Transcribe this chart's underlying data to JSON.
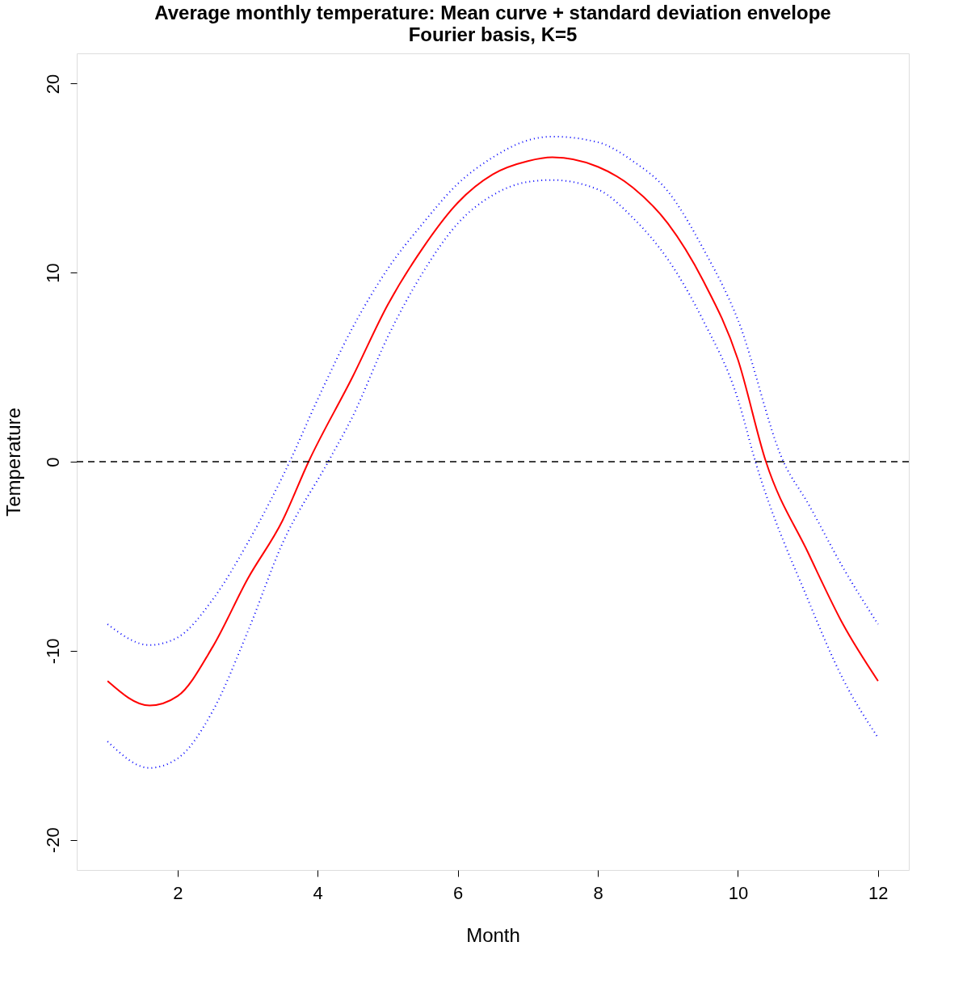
{
  "chart_data": {
    "type": "line",
    "title": "Average monthly temperature: Mean curve + standard deviation envelope",
    "subtitle": "Fourier basis,  K=5",
    "xlabel": "Month",
    "ylabel": "Temperature",
    "xlim": [
      0.56,
      12.44
    ],
    "ylim": [
      -21.6,
      21.6
    ],
    "xticks": [
      2,
      4,
      6,
      8,
      10,
      12
    ],
    "yticks": [
      -20,
      -10,
      0,
      10,
      20
    ],
    "grid": false,
    "series": [
      {
        "color": "#ff0000",
        "line_style": "solid",
        "x": [
          1,
          1.6,
          2,
          2.5,
          3,
          3.5,
          3.87,
          4.5,
          5,
          5.5,
          6,
          6.5,
          7,
          7.35,
          8,
          8.5,
          9,
          9.5,
          10,
          10.4,
          11,
          11.5,
          12
        ],
        "values": [
          -11.6,
          -12.9,
          -12.4,
          -9.8,
          -6.2,
          -3.1,
          0,
          4.5,
          8.3,
          11.3,
          13.7,
          15.2,
          15.9,
          16.1,
          15.6,
          14.5,
          12.6,
          9.6,
          5.4,
          0,
          -4.8,
          -8.6,
          -11.6
        ]
      },
      {
        "color": "#0000ff",
        "line_style": "dotted",
        "x": [
          1,
          1.6,
          2,
          2.5,
          3,
          3.6,
          4,
          4.5,
          5,
          5.5,
          6,
          6.5,
          7,
          7.35,
          8,
          8.5,
          9,
          9.5,
          10,
          10.65,
          11,
          11.5,
          12
        ],
        "values": [
          -8.6,
          -9.7,
          -9.3,
          -7.3,
          -4.3,
          0,
          3.3,
          7.1,
          10.2,
          12.6,
          14.7,
          16.1,
          17.0,
          17.2,
          16.9,
          15.9,
          14.3,
          11.3,
          7.5,
          0,
          -2.2,
          -5.6,
          -8.6
        ]
      },
      {
        "color": "#0000ff",
        "line_style": "dotted",
        "x": [
          1,
          1.6,
          2,
          2.5,
          3,
          3.5,
          4.15,
          4.5,
          5,
          5.5,
          6,
          6.5,
          7,
          7.35,
          8,
          8.5,
          9,
          9.5,
          10,
          10.25,
          11,
          11.5,
          12
        ],
        "values": [
          -14.8,
          -16.2,
          -15.7,
          -13.2,
          -9.0,
          -4.3,
          0,
          2.4,
          6.6,
          10.0,
          12.6,
          14.1,
          14.8,
          14.9,
          14.4,
          12.9,
          10.7,
          7.5,
          3.3,
          0,
          -7.3,
          -11.5,
          -14.6
        ]
      }
    ],
    "ref_lines": [
      {
        "axis": "y",
        "value": 0,
        "color": "#000000",
        "line_style": "dashed"
      }
    ]
  }
}
